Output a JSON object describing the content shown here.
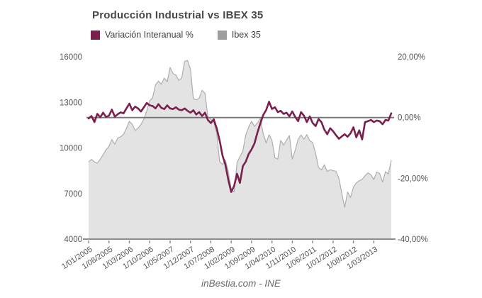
{
  "title": "Producción Industrial vs IBEX 35",
  "footer": "inBestia.com - INE",
  "legend": [
    {
      "label": "Variación Interanual %",
      "color": "#7a1f4e"
    },
    {
      "label": "Ibex 35",
      "color": "#9d9d9d"
    }
  ],
  "chart_data": {
    "type": "line-area-combo",
    "title": "Producción Industrial vs IBEX 35",
    "x_unit": "month",
    "x_start_label": "1/01/2005",
    "x_tick_every": 7,
    "x_tick_labels": [
      "1/01/2005",
      "1/08/2005",
      "1/03/2006",
      "1/10/2006",
      "1/05/2007",
      "1/12/2007",
      "1/07/2008",
      "1/02/2009",
      "1/09/2009",
      "1/04/2010",
      "1/11/2010",
      "1/06/2011",
      "1/01/2012",
      "1/08/2012",
      "1/03/2013"
    ],
    "left_axis": {
      "series": "Ibex 35",
      "range": [
        4000,
        16000
      ],
      "ticks": [
        {
          "value": 16000,
          "label": "16000"
        },
        {
          "value": 13000,
          "label": "13000"
        },
        {
          "value": 10000,
          "label": "10000"
        },
        {
          "value": 7000,
          "label": "7000"
        },
        {
          "value": 4000,
          "label": "4000"
        }
      ]
    },
    "right_axis": {
      "series": "Variación Interanual %",
      "range": [
        -40,
        20
      ],
      "zero_line": true,
      "ticks": [
        {
          "value": 20,
          "label": "20,00%"
        },
        {
          "value": 0,
          "label": "0,00%"
        },
        {
          "value": -20,
          "label": "-20,00%"
        },
        {
          "value": -40,
          "label": "-40,00%"
        }
      ]
    },
    "series": [
      {
        "name": "Ibex 35",
        "type": "area",
        "axis": "left",
        "fill": "#e3e3e3",
        "stroke": "#aeaeae",
        "values": [
          9080,
          9250,
          9080,
          9000,
          9250,
          9550,
          9890,
          10100,
          10550,
          10250,
          10650,
          10734,
          10900,
          11300,
          11750,
          11550,
          11150,
          11300,
          11550,
          11900,
          12450,
          13100,
          13300,
          14147,
          14400,
          14200,
          14600,
          14350,
          15300,
          14900,
          14800,
          14450,
          14600,
          15700,
          15759,
          15182,
          13229,
          13170,
          13269,
          13798,
          13600,
          12046,
          11881,
          11707,
          10987,
          9116,
          8910,
          9195,
          8450,
          7300,
          7100,
          9038,
          9424,
          9787,
          10855,
          11365,
          11756,
          11414,
          11644,
          11940,
          10948,
          10333,
          10871,
          10492,
          9359,
          9263,
          10499,
          10187,
          10514,
          10812,
          9267,
          9859,
          10571,
          10850,
          10576,
          10879,
          10476,
          10359,
          9630,
          8718,
          8546,
          8895,
          8449,
          8566,
          8509,
          8465,
          8008,
          7011,
          6090,
          7102,
          6738,
          7420,
          7708,
          7842,
          7934,
          8168,
          8362,
          8230,
          7920,
          8419,
          8321,
          7763,
          8434,
          8290,
          9186
        ]
      },
      {
        "name": "Variación Interanual %",
        "type": "line",
        "axis": "right",
        "color": "#7a1f4e",
        "values": [
          -0.3,
          0.5,
          -1.5,
          1.2,
          0.1,
          1.6,
          0.2,
          0.6,
          2.6,
          0.3,
          1.1,
          1.7,
          1.4,
          3.0,
          4.6,
          2.4,
          3.6,
          3.0,
          2.0,
          3.4,
          4.8,
          4.0,
          3.8,
          3.0,
          4.4,
          3.2,
          2.8,
          4.0,
          3.0,
          2.8,
          3.4,
          2.6,
          2.4,
          3.0,
          2.2,
          1.6,
          2.4,
          1.0,
          1.8,
          0.5,
          1.6,
          -0.8,
          -1.8,
          -0.6,
          -3.5,
          -7.5,
          -12.5,
          -15.5,
          -20.5,
          -24.5,
          -22.5,
          -18.5,
          -21.5,
          -16.0,
          -14.5,
          -12.0,
          -10.5,
          -8.5,
          -5.0,
          -2.0,
          0.8,
          2.5,
          5.2,
          2.8,
          3.4,
          1.8,
          2.2,
          1.2,
          1.6,
          0.4,
          2.0,
          0.2,
          -1.2,
          1.8,
          0.6,
          -1.5,
          0.4,
          -1.8,
          -2.8,
          -0.5,
          -1.5,
          -4.0,
          -5.5,
          -3.5,
          -4.5,
          -5.8,
          -7.0,
          -6.2,
          -5.5,
          -6.3,
          -5.2,
          -3.2,
          -6.5,
          -4.2,
          -7.2,
          -1.5,
          -1.2,
          -0.8,
          -1.5,
          -1.0,
          -1.2,
          -2.2,
          -0.8,
          -1.0,
          1.4
        ]
      }
    ],
    "colors": {
      "line": "#7a1f4e",
      "area_fill": "#e3e3e3",
      "area_stroke": "#aeaeae",
      "axis_text": "#555555",
      "axis_line": "#8c8c8c",
      "zero_line": "#757575"
    }
  }
}
